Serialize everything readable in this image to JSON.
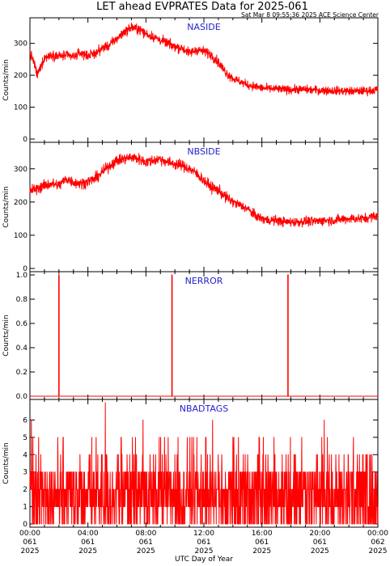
{
  "header": {
    "title": "LET ahead EVPRATES Data for 2025-061",
    "subtitle": "Sat Mar  8 09:55:36 2025 ACE Science Center"
  },
  "x_axis": {
    "label": "UTC Day of Year",
    "ticks": [
      {
        "time": "00:00",
        "doy": "061",
        "year": "2025"
      },
      {
        "time": "04:00",
        "doy": "061",
        "year": "2025"
      },
      {
        "time": "08:00",
        "doy": "061",
        "year": "2025"
      },
      {
        "time": "12:00",
        "doy": "061",
        "year": "2025"
      },
      {
        "time": "16:00",
        "doy": "061",
        "year": "2025"
      },
      {
        "time": "20:00",
        "doy": "061",
        "year": "2025"
      },
      {
        "time": "00:00",
        "doy": "062",
        "year": "2025"
      }
    ]
  },
  "colors": {
    "series": "#ff0000",
    "label": "#2222cc",
    "axis": "#000000"
  },
  "chart_data": [
    {
      "type": "line",
      "name": "NASIDE",
      "ylabel": "Counts/min",
      "ylim": [
        0,
        370
      ],
      "yticks": [
        0,
        100,
        200,
        300
      ],
      "xlim_hours": [
        0,
        24
      ],
      "x_hours": [
        0,
        0.25,
        0.5,
        1,
        1.5,
        2,
        2.5,
        3,
        3.5,
        4,
        4.5,
        5,
        5.5,
        6,
        6.5,
        7,
        7.5,
        8,
        8.5,
        9,
        9.5,
        10,
        10.5,
        11,
        11.5,
        12,
        12.5,
        13,
        13.5,
        14,
        14.5,
        15,
        15.5,
        16,
        16.5,
        17,
        17.5,
        18,
        18.5,
        19,
        19.5,
        20,
        20.5,
        21,
        21.5,
        22,
        22.5,
        23,
        23.5,
        24
      ],
      "values": [
        270,
        245,
        200,
        255,
        265,
        260,
        262,
        258,
        270,
        262,
        268,
        285,
        295,
        315,
        335,
        350,
        345,
        330,
        320,
        310,
        300,
        290,
        285,
        270,
        280,
        275,
        265,
        240,
        210,
        190,
        180,
        170,
        165,
        160,
        158,
        157,
        155,
        155,
        156,
        155,
        154,
        153,
        152,
        152,
        151,
        150,
        150,
        151,
        152,
        155
      ]
    },
    {
      "type": "line",
      "name": "NBSIDE",
      "ylabel": "Counts/min",
      "ylim": [
        0,
        370
      ],
      "yticks": [
        0,
        100,
        200,
        300
      ],
      "xlim_hours": [
        0,
        24
      ],
      "x_hours": [
        0,
        0.5,
        1,
        1.5,
        2,
        2.5,
        3,
        3.5,
        4,
        4.5,
        5,
        5.5,
        6,
        6.5,
        7,
        7.5,
        8,
        8.5,
        9,
        9.5,
        10,
        10.5,
        11,
        11.5,
        12,
        12.5,
        13,
        13.5,
        14,
        14.5,
        15,
        15.5,
        16,
        16.5,
        17,
        17.5,
        18,
        18.5,
        19,
        19.5,
        20,
        20.5,
        21,
        21.5,
        22,
        22.5,
        23,
        23.5,
        24
      ],
      "values": [
        235,
        240,
        250,
        255,
        250,
        270,
        260,
        255,
        262,
        270,
        290,
        310,
        325,
        330,
        335,
        330,
        320,
        325,
        330,
        320,
        315,
        310,
        300,
        285,
        265,
        245,
        235,
        215,
        200,
        190,
        180,
        160,
        150,
        145,
        145,
        140,
        140,
        140,
        142,
        141,
        143,
        145,
        145,
        148,
        150,
        150,
        150,
        155,
        160
      ]
    },
    {
      "type": "line",
      "name": "NERROR",
      "ylabel": "Counts/min",
      "ylim": [
        0,
        1.0
      ],
      "yticks": [
        0.0,
        0.2,
        0.4,
        0.6,
        0.8,
        1.0
      ],
      "xlim_hours": [
        0,
        24
      ],
      "spikes_hours": [
        2.0,
        9.8,
        17.8
      ],
      "spike_value": 1
    },
    {
      "type": "line",
      "name": "NBADTAGS",
      "ylabel": "Counts/min",
      "ylim": [
        0,
        7
      ],
      "yticks": [
        0,
        1,
        2,
        3,
        4,
        5,
        6
      ],
      "xlim_hours": [
        0,
        24
      ],
      "typical_range": [
        0,
        3
      ],
      "peaks": [
        {
          "hour": 0.1,
          "value": 6
        },
        {
          "hour": 5.2,
          "value": 7
        },
        {
          "hour": 7.8,
          "value": 6
        },
        {
          "hour": 12.6,
          "value": 6
        },
        {
          "hour": 20.3,
          "value": 6
        }
      ]
    }
  ]
}
